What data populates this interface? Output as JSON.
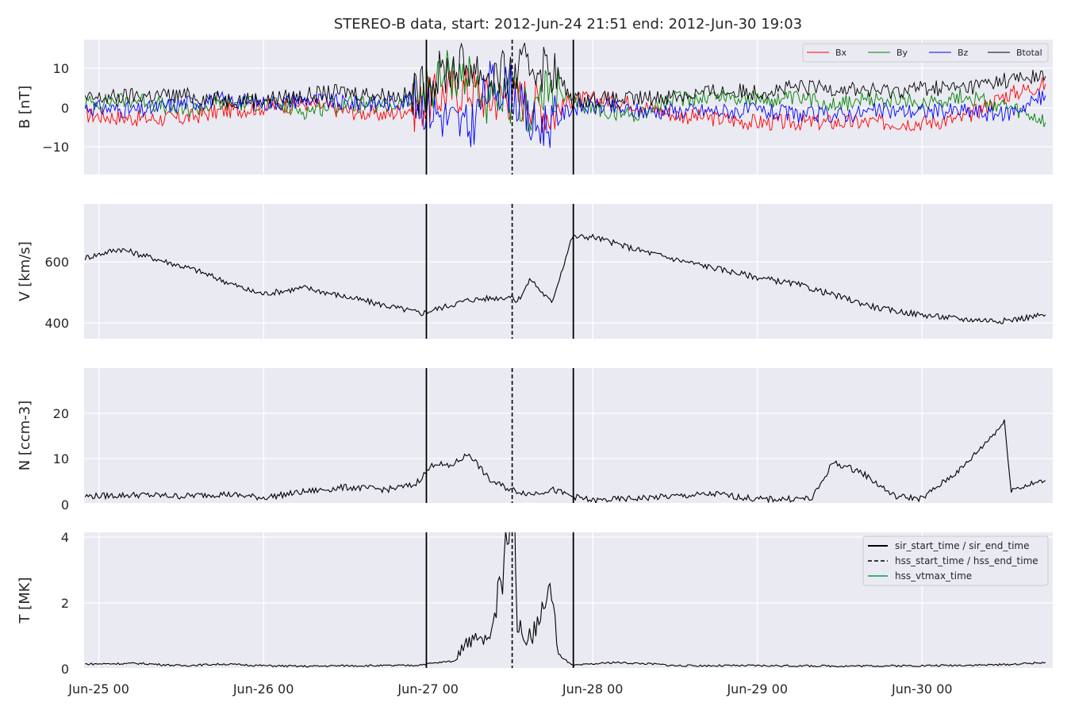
{
  "chart_data": [
    {
      "type": "line",
      "title": "STEREO-B data, start: 2012-Jun-24 21:51  end: 2012-Jun-30 19:03",
      "ylabel": "B [nT]",
      "xlim": [
        "2012-06-24 21:51",
        "2012-06-30 19:03"
      ],
      "ylim": [
        -17.5,
        17.5
      ],
      "yticks": [
        "10",
        "0",
        "−10"
      ],
      "legend_position": "top-right",
      "series": [
        {
          "name": "Bx",
          "color": "#ff0000",
          "x": [
            "2012-06-24 22:00",
            "2012-06-25 06:00",
            "2012-06-25 12:00",
            "2012-06-25 18:00",
            "2012-06-26 00:00",
            "2012-06-26 06:00",
            "2012-06-26 12:00",
            "2012-06-26 18:00",
            "2012-06-26 22:00",
            "2012-06-27 03:00",
            "2012-06-27 06:00",
            "2012-06-27 09:00",
            "2012-06-27 12:00",
            "2012-06-27 15:00",
            "2012-06-27 18:00",
            "2012-06-27 21:00",
            "2012-06-28 02:00",
            "2012-06-28 06:00",
            "2012-06-28 12:00",
            "2012-06-28 18:00",
            "2012-06-29 00:00",
            "2012-06-29 06:00",
            "2012-06-29 12:00",
            "2012-06-29 18:00",
            "2012-06-30 00:00",
            "2012-06-30 06:00",
            "2012-06-30 12:00",
            "2012-06-30 18:00"
          ],
          "y": [
            -2,
            -3,
            -3,
            -1,
            0,
            1,
            -1,
            -2,
            0,
            4,
            5,
            2,
            3,
            2,
            -2,
            2,
            2,
            1,
            -2,
            -3,
            -4,
            -4,
            -4,
            -4,
            -4,
            -3,
            3,
            6
          ]
        },
        {
          "name": "By",
          "color": "#008000",
          "x": [
            "2012-06-24 22:00",
            "2012-06-25 06:00",
            "2012-06-25 12:00",
            "2012-06-25 18:00",
            "2012-06-26 00:00",
            "2012-06-26 06:00",
            "2012-06-26 12:00",
            "2012-06-26 18:00",
            "2012-06-26 22:00",
            "2012-06-27 03:00",
            "2012-06-27 06:00",
            "2012-06-27 09:00",
            "2012-06-27 12:00",
            "2012-06-27 15:00",
            "2012-06-27 18:00",
            "2012-06-27 21:00",
            "2012-06-28 02:00",
            "2012-06-28 06:00",
            "2012-06-28 12:00",
            "2012-06-28 18:00",
            "2012-06-29 00:00",
            "2012-06-29 06:00",
            "2012-06-29 12:00",
            "2012-06-29 18:00",
            "2012-06-30 00:00",
            "2012-06-30 06:00",
            "2012-06-30 12:00",
            "2012-06-30 18:00"
          ],
          "y": [
            1,
            2,
            -1,
            1,
            1,
            -1,
            1,
            0,
            2,
            9,
            8,
            0,
            2,
            -1,
            5,
            1,
            -1,
            -2,
            2,
            3,
            2,
            2,
            1,
            2,
            1,
            3,
            0,
            -4
          ]
        },
        {
          "name": "Bz",
          "color": "#0000ff",
          "x": [
            "2012-06-24 22:00",
            "2012-06-25 06:00",
            "2012-06-25 12:00",
            "2012-06-25 18:00",
            "2012-06-26 00:00",
            "2012-06-26 06:00",
            "2012-06-26 12:00",
            "2012-06-26 18:00",
            "2012-06-26 22:00",
            "2012-06-27 03:00",
            "2012-06-27 06:00",
            "2012-06-27 09:00",
            "2012-06-27 12:00",
            "2012-06-27 15:00",
            "2012-06-27 18:00",
            "2012-06-27 21:00",
            "2012-06-28 02:00",
            "2012-06-28 06:00",
            "2012-06-28 12:00",
            "2012-06-28 18:00",
            "2012-06-29 00:00",
            "2012-06-29 06:00",
            "2012-06-29 12:00",
            "2012-06-29 18:00",
            "2012-06-30 00:00",
            "2012-06-30 06:00",
            "2012-06-30 12:00",
            "2012-06-30 18:00"
          ],
          "y": [
            0,
            -1,
            1,
            2,
            1,
            2,
            1,
            1,
            2,
            -3,
            -6,
            6,
            5,
            -5,
            -4,
            0,
            0,
            -1,
            -1,
            -1,
            -1,
            -2,
            -2,
            -1,
            -1,
            -1,
            -2,
            3
          ]
        },
        {
          "name": "Btotal",
          "color": "#000000",
          "x": [
            "2012-06-24 22:00",
            "2012-06-25 06:00",
            "2012-06-25 12:00",
            "2012-06-25 18:00",
            "2012-06-26 00:00",
            "2012-06-26 06:00",
            "2012-06-26 12:00",
            "2012-06-26 18:00",
            "2012-06-26 22:00",
            "2012-06-27 03:00",
            "2012-06-27 06:00",
            "2012-06-27 09:00",
            "2012-06-27 12:00",
            "2012-06-27 15:00",
            "2012-06-27 18:00",
            "2012-06-27 21:00",
            "2012-06-28 02:00",
            "2012-06-28 06:00",
            "2012-06-28 12:00",
            "2012-06-28 18:00",
            "2012-06-29 00:00",
            "2012-06-29 06:00",
            "2012-06-29 12:00",
            "2012-06-29 18:00",
            "2012-06-30 00:00",
            "2012-06-30 06:00",
            "2012-06-30 12:00",
            "2012-06-30 18:00"
          ],
          "y": [
            2,
            3,
            3,
            2,
            2,
            3,
            4,
            3,
            3,
            10,
            11,
            8,
            8,
            11,
            10,
            2,
            2,
            2,
            3,
            4,
            4,
            5,
            5,
            4,
            5,
            5,
            7,
            8
          ]
        }
      ]
    },
    {
      "type": "line",
      "ylabel": "V [km/s]",
      "xlim": [
        "2012-06-24 21:51",
        "2012-06-30 19:03"
      ],
      "ylim": [
        340,
        790
      ],
      "yticks": [
        "600",
        "400"
      ],
      "series": [
        {
          "color": "#000000",
          "x": [
            "2012-06-24 22:00",
            "2012-06-25 03:00",
            "2012-06-25 07:00",
            "2012-06-25 14:00",
            "2012-06-25 22:00",
            "2012-06-26 00:00",
            "2012-06-26 06:00",
            "2012-06-26 12:00",
            "2012-06-26 18:00",
            "2012-06-26 23:00",
            "2012-06-27 06:00",
            "2012-06-27 12:00",
            "2012-06-27 13:00",
            "2012-06-27 15:00",
            "2012-06-27 16:00",
            "2012-06-27 18:00",
            "2012-06-27 21:00",
            "2012-06-28 00:00",
            "2012-06-28 06:00",
            "2012-06-28 12:00",
            "2012-06-28 18:00",
            "2012-06-29 00:00",
            "2012-06-29 06:00",
            "2012-06-29 12:00",
            "2012-06-29 18:00",
            "2012-06-30 00:00",
            "2012-06-30 06:00",
            "2012-06-30 12:00",
            "2012-06-30 18:00"
          ],
          "y": [
            610,
            640,
            615,
            570,
            500,
            490,
            510,
            480,
            450,
            425,
            470,
            480,
            465,
            540,
            510,
            460,
            680,
            680,
            640,
            605,
            575,
            545,
            520,
            480,
            440,
            420,
            405,
            400,
            420
          ]
        }
      ]
    },
    {
      "type": "line",
      "ylabel": "N [ccm-3]",
      "xlim": [
        "2012-06-24 21:51",
        "2012-06-30 19:03"
      ],
      "ylim": [
        0,
        30
      ],
      "yticks": [
        "20",
        "10",
        "0"
      ],
      "series": [
        {
          "color": "#000000",
          "x": [
            "2012-06-24 22:00",
            "2012-06-25 06:00",
            "2012-06-25 12:00",
            "2012-06-25 18:00",
            "2012-06-26 00:00",
            "2012-06-26 06:00",
            "2012-06-26 12:00",
            "2012-06-26 18:00",
            "2012-06-26 22:00",
            "2012-06-27 01:00",
            "2012-06-27 03:00",
            "2012-06-27 06:00",
            "2012-06-27 09:00",
            "2012-06-27 12:00",
            "2012-06-27 15:00",
            "2012-06-27 18:00",
            "2012-06-27 21:00",
            "2012-06-28 00:00",
            "2012-06-28 06:00",
            "2012-06-28 12:00",
            "2012-06-28 18:00",
            "2012-06-29 00:00",
            "2012-06-29 08:00",
            "2012-06-29 11:00",
            "2012-06-29 15:00",
            "2012-06-29 20:00",
            "2012-06-30 00:00",
            "2012-06-30 06:00",
            "2012-06-30 12:00",
            "2012-06-30 13:00",
            "2012-06-30 18:00"
          ],
          "y": [
            1.5,
            1.8,
            1.5,
            2,
            1.2,
            2.5,
            3.5,
            3,
            4,
            9,
            8,
            11,
            5,
            3,
            2,
            3,
            1.5,
            0.5,
            1,
            1.5,
            2,
            0.8,
            1,
            9,
            7,
            1.5,
            1,
            8,
            18,
            3,
            5
          ]
        }
      ]
    },
    {
      "type": "line",
      "ylabel": "T [MK]",
      "xlim": [
        "2012-06-24 21:51",
        "2012-06-30 19:03"
      ],
      "ylim": [
        -0.02,
        4.1
      ],
      "yticks": [
        "4",
        "2",
        "0"
      ],
      "legend_position": "top-right",
      "series": [
        {
          "color": "#000000",
          "x": [
            "2012-06-24 22:00",
            "2012-06-25 06:00",
            "2012-06-25 12:00",
            "2012-06-25 18:00",
            "2012-06-26 00:00",
            "2012-06-26 06:00",
            "2012-06-26 12:00",
            "2012-06-26 18:00",
            "2012-06-26 22:00",
            "2012-06-27 04:00",
            "2012-06-27 06:00",
            "2012-06-27 09:00",
            "2012-06-27 12:00",
            "2012-06-27 12:30",
            "2012-06-27 13:00",
            "2012-06-27 15:00",
            "2012-06-27 18:00",
            "2012-06-27 19:00",
            "2012-06-27 21:00",
            "2012-06-28 03:00",
            "2012-06-28 09:00",
            "2012-06-28 12:00",
            "2012-06-29 00:00",
            "2012-06-29 12:00",
            "2012-06-30 00:00",
            "2012-06-30 12:00",
            "2012-06-30 18:00"
          ],
          "y": [
            0.1,
            0.12,
            0.05,
            0.1,
            0.05,
            0.03,
            0.05,
            0.05,
            0.06,
            0.2,
            0.6,
            0.5,
            2.8,
            3.9,
            0.8,
            0.6,
            1.5,
            0.4,
            0.05,
            0.15,
            0.1,
            0.05,
            0.05,
            0.04,
            0.05,
            0.08,
            0.15
          ]
        }
      ]
    }
  ],
  "markers": {
    "sir_start_time": "2012-06-26 23:45",
    "sir_end_time": "2012-06-27 21:10",
    "hss_start_time": "2012-06-27 12:15"
  },
  "legend_bottom": [
    {
      "label": "sir_start_time / sir_end_time",
      "style": "solid",
      "color": "#000000"
    },
    {
      "label": "hss_start_time / hss_end_time",
      "style": "dashed",
      "color": "#000000"
    },
    {
      "label": "hss_vtmax_time",
      "style": "solid",
      "color": "#3cb371"
    }
  ],
  "x_tick_labels": [
    {
      "date": "2012-06-25 00:00",
      "label": "Jun-25 00"
    },
    {
      "date": "2012-06-26 00:00",
      "label": "Jun-26 00"
    },
    {
      "date": "2012-06-27 00:00",
      "label": "Jun-27 00"
    },
    {
      "date": "2012-06-28 00:00",
      "label": "Jun-28 00"
    },
    {
      "date": "2012-06-29 00:00",
      "label": "Jun-29 00"
    },
    {
      "date": "2012-06-30 00:00",
      "label": "Jun-30 00"
    }
  ],
  "style": {
    "panel_bg": "#eaeaf2",
    "grid": "#ffffff",
    "text": "#262626"
  }
}
